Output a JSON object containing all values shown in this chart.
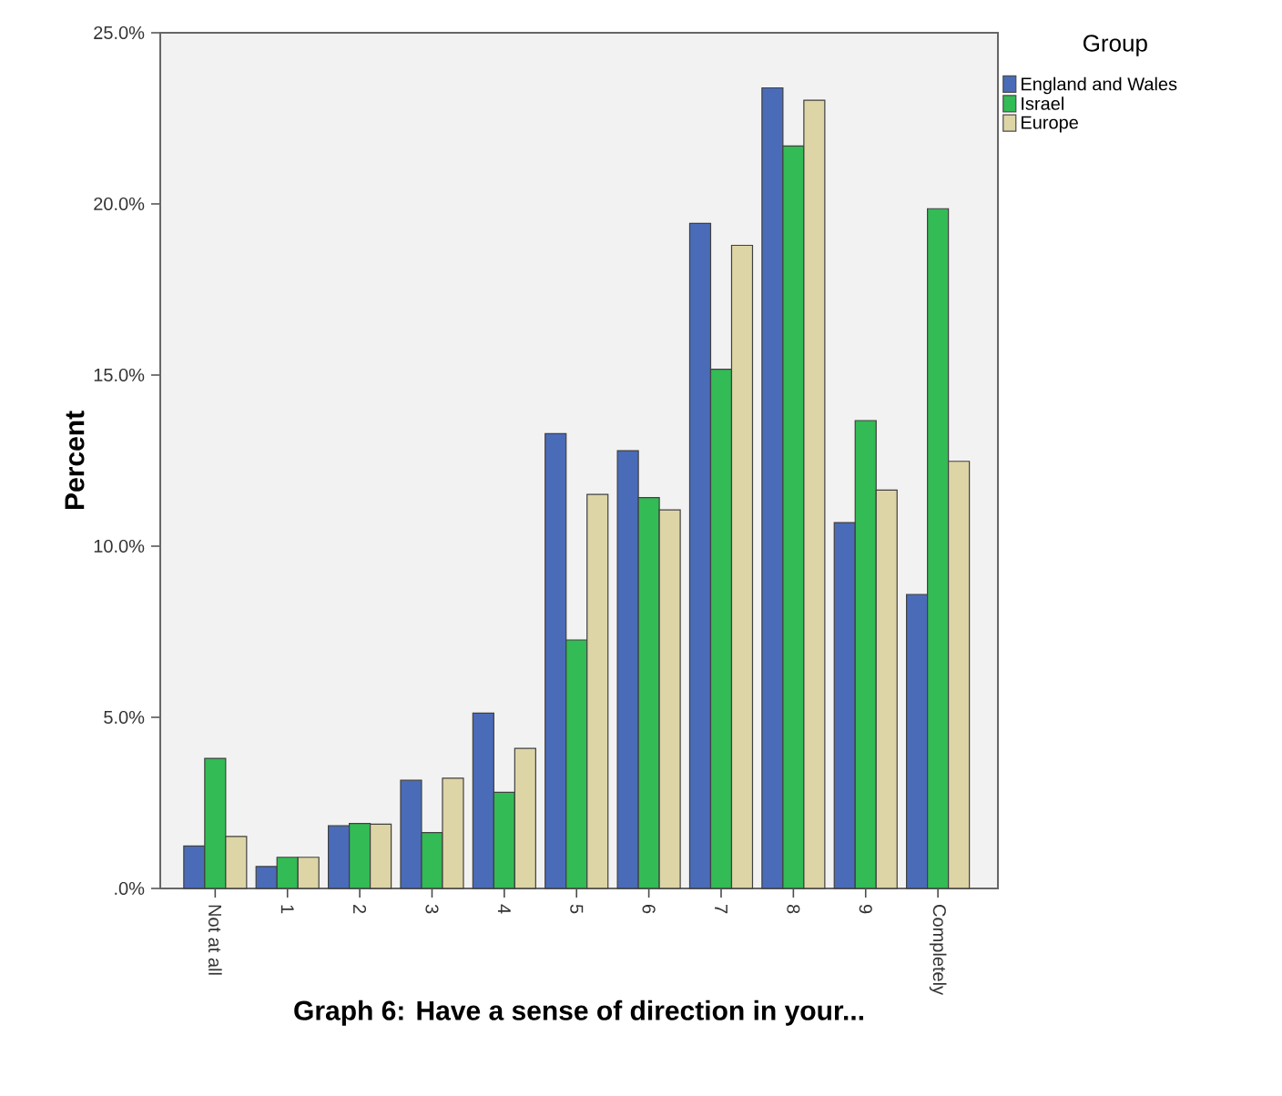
{
  "chart_data": {
    "type": "bar",
    "xlabel": "Graph 6: Have a sense of direction in your...",
    "ylabel": "Percent",
    "legend_title": "Group",
    "legend": "top right",
    "categories": [
      "Not at all",
      "1",
      "2",
      "3",
      "4",
      "5",
      "6",
      "7",
      "8",
      "9",
      "Completely"
    ],
    "series": [
      {
        "name": "England and Wales",
        "color": "#4a6bb8",
        "values": [
          1.24,
          0.64,
          1.83,
          3.16,
          5.12,
          13.29,
          12.79,
          19.43,
          23.39,
          10.69,
          8.59
        ]
      },
      {
        "name": "Israel",
        "color": "#33bb55",
        "values": [
          3.8,
          0.91,
          1.9,
          1.63,
          2.81,
          7.26,
          11.42,
          15.17,
          21.69,
          13.67,
          19.86
        ]
      },
      {
        "name": "Europe",
        "color": "#ddd5a6",
        "values": [
          1.52,
          0.91,
          1.88,
          3.22,
          4.09,
          11.51,
          11.06,
          18.79,
          23.03,
          11.64,
          12.48
        ]
      }
    ],
    "ylim": [
      0,
      25
    ],
    "yticks": [
      {
        "value": 0,
        "label": ".0%"
      },
      {
        "value": 5,
        "label": "5.0%"
      },
      {
        "value": 10,
        "label": "10.0%"
      },
      {
        "value": 15,
        "label": "15.0%"
      },
      {
        "value": 20,
        "label": "20.0%"
      },
      {
        "value": 25,
        "label": "25.0%"
      }
    ],
    "grid": false
  }
}
